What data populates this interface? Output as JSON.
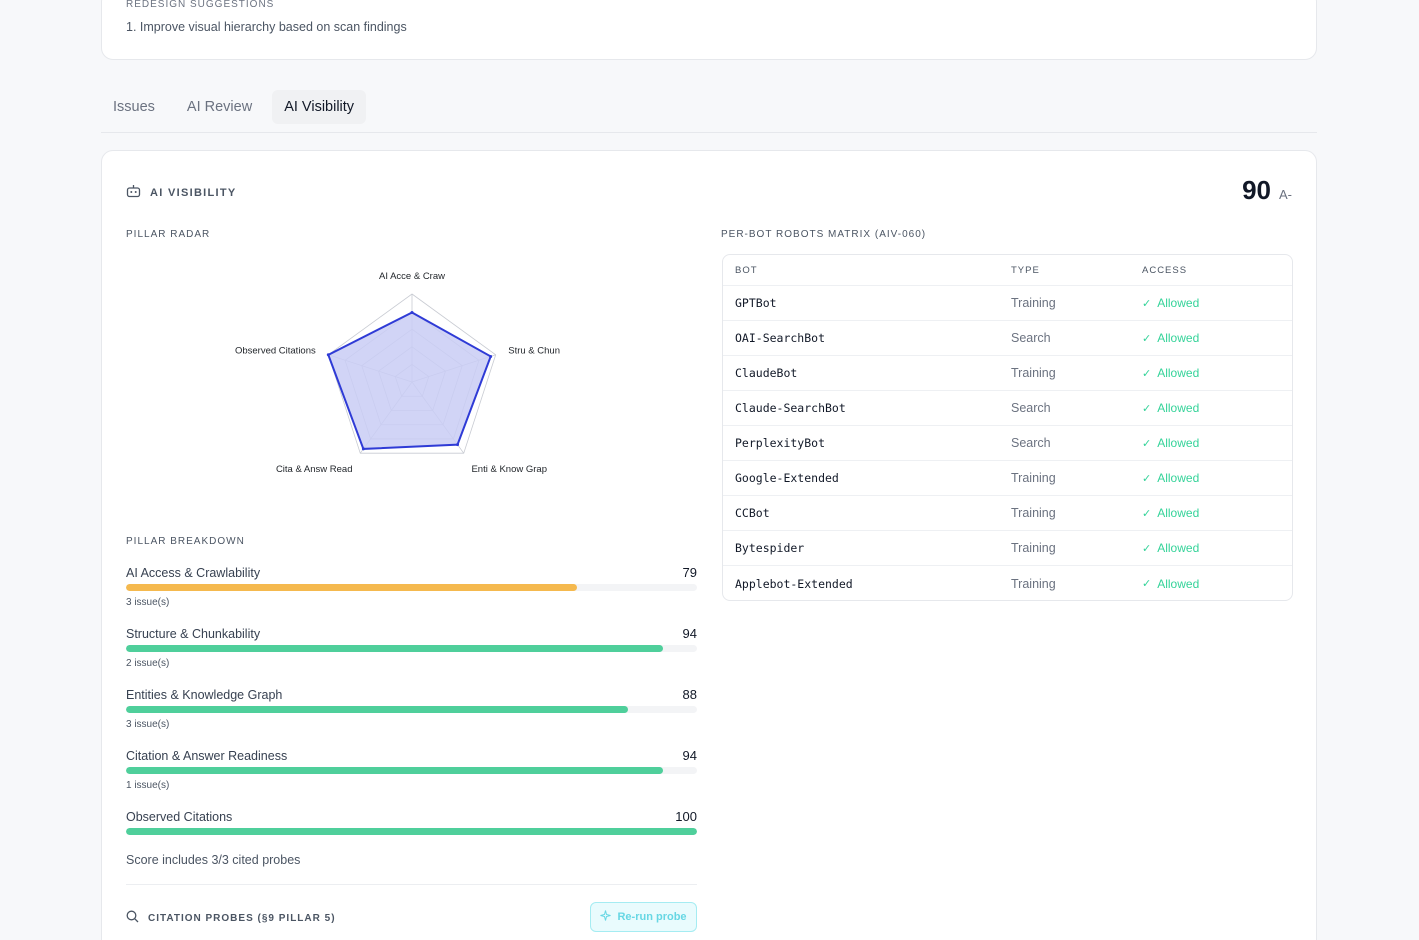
{
  "top_card": {
    "eyebrow": "REDESIGN SUGGESTIONS",
    "suggestion": "1. Improve visual hierarchy based on scan findings"
  },
  "tabs": [
    {
      "label": "Issues",
      "active": false
    },
    {
      "label": "AI Review",
      "active": false
    },
    {
      "label": "AI Visibility",
      "active": true
    }
  ],
  "ai_visibility": {
    "title": "AI VISIBILITY",
    "score": "90",
    "grade": "A-",
    "radar_label": "PILLAR RADAR",
    "breakdown_label": "PILLAR BREAKDOWN",
    "matrix_label": "PER-BOT ROBOTS MATRIX (AIV-060)"
  },
  "radar": {
    "axes": [
      "AI Acce & Craw",
      "Stru & Chun",
      "Enti & Know Grap",
      "Cita & Answ Read",
      "Observed Citations"
    ],
    "values": [
      79,
      94,
      88,
      94,
      100
    ],
    "max": 100,
    "fill_color": "#c9cdf5",
    "stroke_color": "#2f3bd6"
  },
  "pillars": [
    {
      "name": "AI Access & Crawlability",
      "value": "79",
      "pct": 79,
      "issues": "3 issue(s)",
      "color": "#f5b94e"
    },
    {
      "name": "Structure & Chunkability",
      "value": "94",
      "pct": 94,
      "issues": "2 issue(s)",
      "color": "#4fcf9b"
    },
    {
      "name": "Entities & Knowledge Graph",
      "value": "88",
      "pct": 88,
      "issues": "3 issue(s)",
      "color": "#4fcf9b"
    },
    {
      "name": "Citation & Answer Readiness",
      "value": "94",
      "pct": 94,
      "issues": "1 issue(s)",
      "color": "#4fcf9b"
    },
    {
      "name": "Observed Citations",
      "value": "100",
      "pct": 100,
      "issues": "",
      "color": "#4fcf9b"
    }
  ],
  "score_note": "Score includes 3/3 cited probes",
  "probes": {
    "title": "CITATION PROBES (§9 PILLAR 5)",
    "rerun_label": "Re-run probe"
  },
  "matrix": {
    "headers": [
      "BOT",
      "TYPE",
      "ACCESS"
    ],
    "rows": [
      {
        "bot": "GPTBot",
        "type": "Training",
        "access": "Allowed"
      },
      {
        "bot": "OAI-SearchBot",
        "type": "Search",
        "access": "Allowed"
      },
      {
        "bot": "ClaudeBot",
        "type": "Training",
        "access": "Allowed"
      },
      {
        "bot": "Claude-SearchBot",
        "type": "Search",
        "access": "Allowed"
      },
      {
        "bot": "PerplexityBot",
        "type": "Search",
        "access": "Allowed"
      },
      {
        "bot": "Google-Extended",
        "type": "Training",
        "access": "Allowed"
      },
      {
        "bot": "CCBot",
        "type": "Training",
        "access": "Allowed"
      },
      {
        "bot": "Bytespider",
        "type": "Training",
        "access": "Allowed"
      },
      {
        "bot": "Applebot-Extended",
        "type": "Training",
        "access": "Allowed"
      }
    ]
  }
}
